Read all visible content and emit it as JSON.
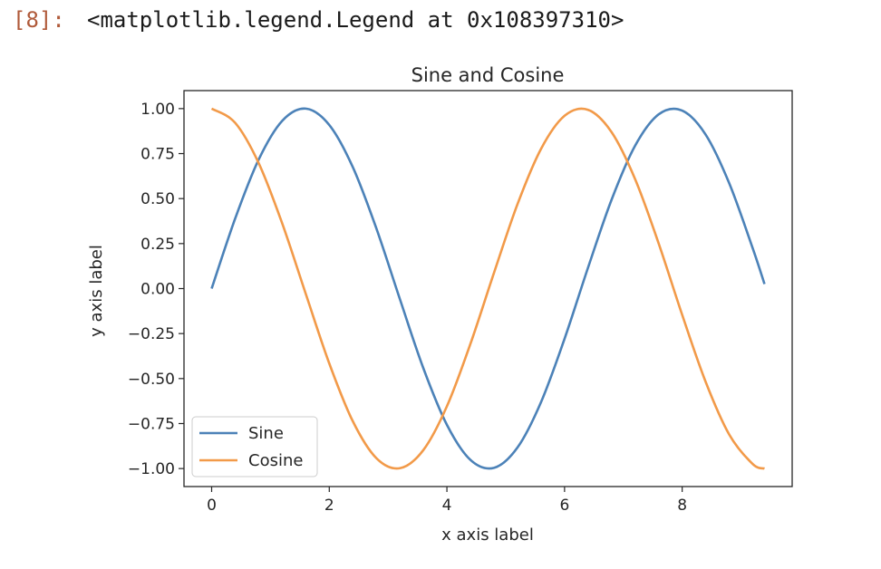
{
  "cell": {
    "prompt": "[8]:",
    "output_text": "<matplotlib.legend.Legend at 0x108397310>"
  },
  "chart_data": {
    "type": "line",
    "title": "Sine and Cosine",
    "xlabel": "x axis label",
    "ylabel": "y axis label",
    "xlim": [
      -0.47,
      9.87
    ],
    "ylim": [
      -1.1,
      1.1
    ],
    "xticks": [
      0,
      2,
      4,
      6,
      8
    ],
    "xtick_labels": [
      "0",
      "2",
      "4",
      "6",
      "8"
    ],
    "yticks": [
      1.0,
      0.75,
      0.5,
      0.25,
      0.0,
      -0.25,
      -0.5,
      -0.75,
      -1.0
    ],
    "ytick_labels": [
      "1.00",
      "0.75",
      "0.50",
      "0.25",
      "0.00",
      "−0.25",
      "−0.50",
      "−0.75",
      "−1.00"
    ],
    "grid": false,
    "legend_position": "lower-left",
    "x": [
      0.0,
      0.4,
      0.8,
      1.2,
      1.6,
      2.0,
      2.4,
      2.8,
      3.2,
      3.6,
      4.0,
      4.4,
      4.8,
      5.2,
      5.6,
      6.0,
      6.4,
      6.8,
      7.2,
      7.6,
      8.0,
      8.4,
      8.8,
      9.2,
      9.4
    ],
    "series": [
      {
        "name": "Sine",
        "color": "#4c82b8",
        "values": [
          0.0,
          0.389,
          0.717,
          0.932,
          1.0,
          0.909,
          0.675,
          0.335,
          -0.058,
          -0.443,
          -0.757,
          -0.952,
          -0.996,
          -0.883,
          -0.631,
          -0.279,
          0.117,
          0.494,
          0.794,
          0.968,
          0.989,
          0.855,
          0.585,
          0.223,
          0.025
        ]
      },
      {
        "name": "Cosine",
        "color": "#f29a49",
        "values": [
          1.0,
          0.921,
          0.697,
          0.362,
          -0.029,
          -0.416,
          -0.737,
          -0.942,
          -0.998,
          -0.897,
          -0.654,
          -0.307,
          0.087,
          0.469,
          0.776,
          0.96,
          0.993,
          0.869,
          0.608,
          0.251,
          -0.146,
          -0.519,
          -0.811,
          -0.975,
          -1.0
        ]
      }
    ]
  }
}
